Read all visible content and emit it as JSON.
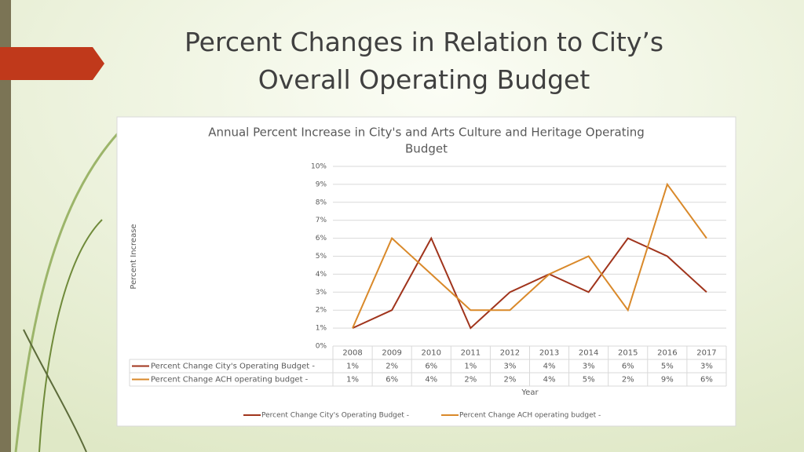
{
  "slide_title": "Percent Changes in Relation to City’s Overall Operating Budget",
  "chart_data": {
    "type": "line",
    "title": "Annual Percent Increase in City's and Arts Culture and Heritage Operating Budget",
    "y_label": "Percent Increase",
    "x_label": "Year",
    "categories": [
      "2008",
      "2009",
      "2010",
      "2011",
      "2012",
      "2013",
      "2014",
      "2015",
      "2016",
      "2017"
    ],
    "series": [
      {
        "name": "Percent Change City's Operating Budget -",
        "color": "#a0341c",
        "values": [
          1,
          2,
          6,
          1,
          3,
          4,
          3,
          6,
          5,
          3
        ],
        "value_labels": [
          "1%",
          "2%",
          "6%",
          "1%",
          "3%",
          "4%",
          "3%",
          "6%",
          "5%",
          "3%"
        ]
      },
      {
        "name": "Percent Change ACH operating budget -",
        "color": "#d9892a",
        "values": [
          1,
          6,
          4,
          2,
          2,
          4,
          5,
          2,
          9,
          6
        ],
        "value_labels": [
          "1%",
          "6%",
          "4%",
          "2%",
          "2%",
          "4%",
          "5%",
          "2%",
          "9%",
          "6%"
        ]
      }
    ],
    "ylim": [
      0,
      10
    ],
    "yticks": [
      {
        "value": 0,
        "label": "0%"
      },
      {
        "value": 1,
        "label": "1%"
      },
      {
        "value": 2,
        "label": "2%"
      },
      {
        "value": 3,
        "label": "3%"
      },
      {
        "value": 4,
        "label": "4%"
      },
      {
        "value": 5,
        "label": "5%"
      },
      {
        "value": 6,
        "label": "6%"
      },
      {
        "value": 7,
        "label": "7%"
      },
      {
        "value": 8,
        "label": "8%"
      },
      {
        "value": 9,
        "label": "9%"
      },
      {
        "value": 10,
        "label": "10%"
      }
    ],
    "grid": true,
    "legend": "bottom"
  }
}
